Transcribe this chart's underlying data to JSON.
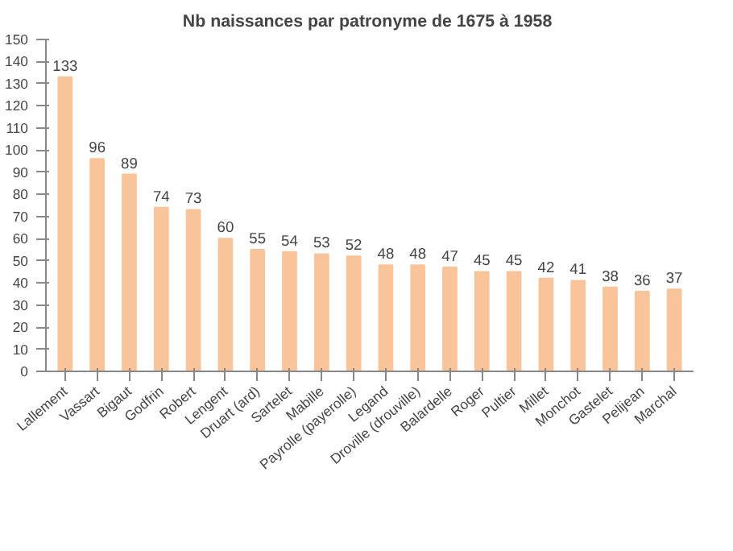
{
  "chart_data": {
    "type": "bar",
    "title": "Nb naissances  par patronyme de 1675 à 1958",
    "categories": [
      "Lallement",
      "Vassart",
      "Bigaut",
      "Godfrin",
      "Robert",
      "Lengent",
      "Druart (ard)",
      "Sartelet",
      "Mabille",
      "Payrolle (payerolle)",
      "Legand",
      "Droville (drouville)",
      "Balardelle",
      "Roger",
      "Pultier",
      "Millet",
      "Monchot",
      "Gastelet",
      "Pelijean",
      "Marchal"
    ],
    "values": [
      133,
      96,
      89,
      74,
      73,
      60,
      55,
      54,
      53,
      52,
      48,
      48,
      47,
      45,
      45,
      42,
      41,
      38,
      36,
      37
    ],
    "color": "#f9c499",
    "ylim": [
      0,
      150
    ],
    "yticks": [
      0,
      10,
      20,
      30,
      40,
      50,
      60,
      70,
      80,
      90,
      100,
      110,
      120,
      130,
      140,
      150
    ],
    "data_labels": true,
    "grid": false
  }
}
